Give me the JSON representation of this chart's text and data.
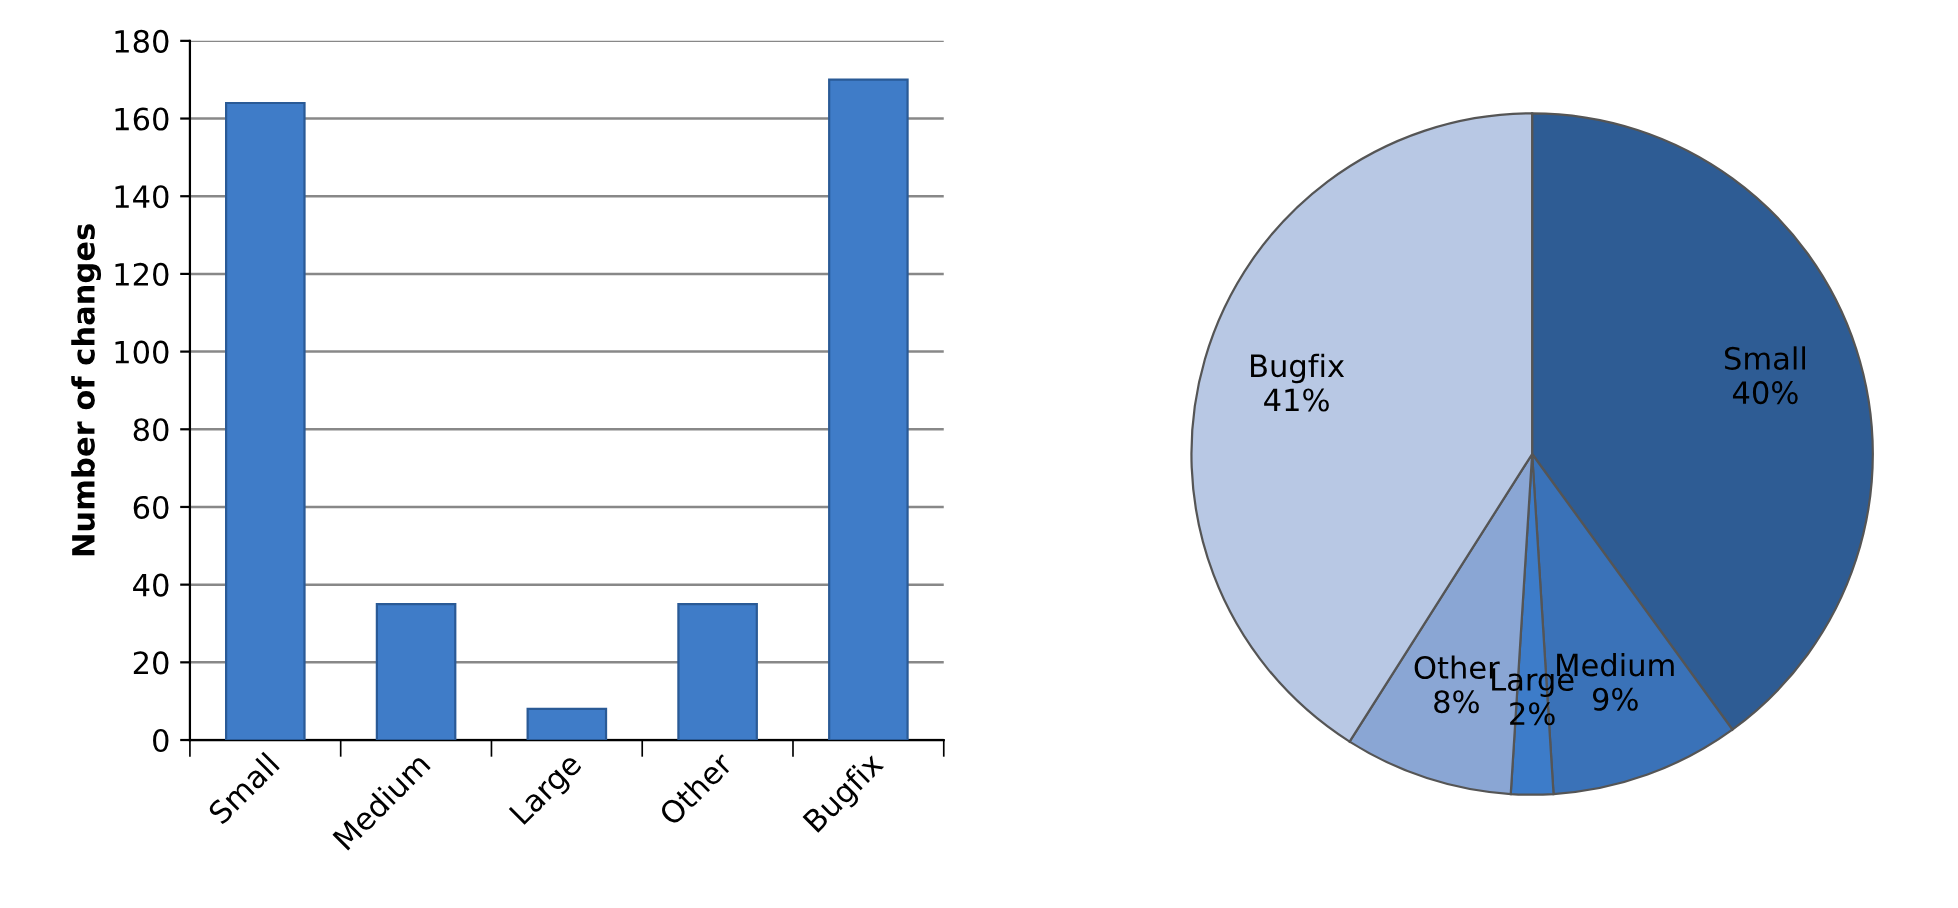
{
  "chart_data": [
    {
      "type": "bar",
      "ylabel": "Number of changes",
      "categories": [
        "Small",
        "Medium",
        "Large",
        "Other",
        "Bugfix"
      ],
      "values": [
        164,
        35,
        8,
        35,
        170
      ],
      "color": "#3f7cc8",
      "ylim": [
        0,
        180
      ],
      "yticks": [
        0,
        20,
        40,
        60,
        80,
        100,
        120,
        140,
        160,
        180
      ],
      "grid": "y"
    },
    {
      "type": "pie",
      "categories": [
        "Small",
        "Medium",
        "Large",
        "Other",
        "Bugfix"
      ],
      "values": [
        40,
        9,
        2,
        8,
        41
      ],
      "colors": [
        "#2e5c94",
        "#3a72b8",
        "#3d7cc9",
        "#8aa6d4",
        "#b8c8e4"
      ],
      "value_labels": [
        "40%",
        "9%",
        "2%",
        "8%",
        "41%"
      ]
    }
  ]
}
